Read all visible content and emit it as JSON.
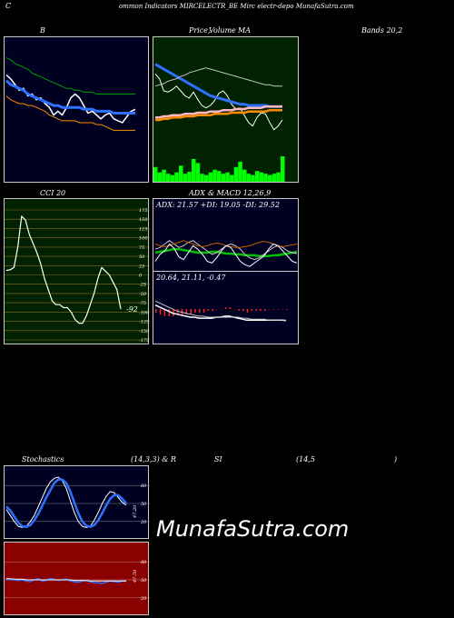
{
  "header": {
    "c": "C",
    "title": "ommon  Indicators MIRCELECTR_BE Mirc electr-depo  MunafaSutra.com"
  },
  "labels": {
    "b": "B",
    "price": "Price,",
    "volume": "Volume",
    "ma": "MA",
    "bands": "Bands 20,2",
    "cci": "CCI 20",
    "adx": "ADX",
    "macd": "& MACD 12,26,9",
    "adx_values": "ADX: 21.57  +DI: 19.05 -DI: 29.52",
    "macd_values": "20.64,  21.11,  -0.47",
    "stoch": "Stochastics",
    "stoch_params": "(14,3,3) & R",
    "si": "SI",
    "rsi_params": "(14,5",
    "close_paren": ")",
    "cci_value": "-92",
    "stoch_value": "47.20",
    "rsi_value": "47.50"
  },
  "watermark": "MunafaSutra.com",
  "colors": {
    "green_bg": "#002200",
    "navy_bg": "#000022",
    "cci_bg": "#002200",
    "rsi_bg": "#8b0000"
  },
  "chart_data": [
    {
      "type": "line",
      "name": "bollinger-bands",
      "x": [
        0,
        1,
        2,
        3,
        4,
        5,
        6,
        7,
        8,
        9,
        10,
        11,
        12,
        13,
        14,
        15,
        16,
        17,
        18,
        19,
        20,
        21,
        22,
        23,
        24,
        25,
        26,
        27,
        28,
        29,
        30
      ],
      "series": [
        {
          "name": "upper",
          "color": "#00a000",
          "values": [
            104,
            103,
            101,
            100,
            99,
            98,
            96,
            95,
            94,
            93,
            92,
            91,
            90,
            89,
            88,
            88,
            87,
            87,
            86,
            86,
            86,
            85,
            85,
            85,
            85,
            85,
            85,
            85,
            85,
            85,
            85
          ]
        },
        {
          "name": "price",
          "color": "#ffffff",
          "values": [
            95,
            93,
            90,
            87,
            88,
            84,
            85,
            82,
            83,
            80,
            78,
            74,
            76,
            74,
            78,
            83,
            85,
            83,
            79,
            75,
            76,
            74,
            72,
            74,
            75,
            72,
            71,
            70,
            73,
            76,
            77
          ]
        },
        {
          "name": "middle",
          "color": "#3070ff",
          "values": [
            92,
            90,
            89,
            88,
            87,
            85,
            84,
            83,
            82,
            81,
            80,
            79,
            79,
            78,
            78,
            78,
            78,
            78,
            77,
            77,
            77,
            76,
            76,
            76,
            76,
            75,
            75,
            75,
            75,
            75,
            75
          ]
        },
        {
          "name": "lower",
          "color": "#ff8c00",
          "values": [
            84,
            82,
            81,
            80,
            80,
            79,
            79,
            78,
            77,
            76,
            74,
            73,
            72,
            71,
            71,
            71,
            71,
            70,
            70,
            70,
            70,
            69,
            69,
            68,
            67,
            66,
            66,
            66,
            66,
            66,
            66
          ]
        }
      ]
    },
    {
      "type": "line",
      "name": "price-volume-ma",
      "x": [
        0,
        1,
        2,
        3,
        4,
        5,
        6,
        7,
        8,
        9,
        10,
        11,
        12,
        13,
        14,
        15,
        16,
        17,
        18,
        19,
        20,
        21,
        22,
        23,
        24,
        25,
        26,
        27,
        28,
        29,
        30
      ],
      "series": [
        {
          "name": "price",
          "color": "#ffffff",
          "values": [
            76,
            72,
            62,
            61,
            63,
            66,
            62,
            58,
            56,
            61,
            55,
            50,
            48,
            50,
            54,
            60,
            62,
            58,
            51,
            47,
            48,
            42,
            36,
            33,
            40,
            44,
            43,
            36,
            30,
            33,
            38
          ]
        },
        {
          "name": "ma-short",
          "color": "#3070ff",
          "values": [
            84,
            82,
            80,
            78,
            76,
            74,
            72,
            70,
            68,
            66,
            64,
            62,
            60,
            58,
            57,
            56,
            55,
            54,
            53,
            52,
            51,
            51,
            50,
            50,
            50,
            50,
            50,
            49,
            49,
            49,
            49
          ]
        },
        {
          "name": "ma-long",
          "color": "#c8c8c8",
          "values": [
            66,
            67,
            68,
            70,
            71,
            72,
            74,
            75,
            77,
            78,
            79,
            80,
            81,
            80,
            79,
            78,
            77,
            76,
            75,
            74,
            73,
            72,
            71,
            70,
            69,
            68,
            67,
            67,
            66,
            66,
            66
          ]
        },
        {
          "name": "ma-pink",
          "color": "#ffb6c1",
          "values": [
            40,
            40,
            41,
            41,
            42,
            42,
            42,
            43,
            43,
            43,
            44,
            44,
            44,
            45,
            45,
            45,
            46,
            46,
            46,
            47,
            47,
            47,
            48,
            48,
            48,
            48,
            49,
            49,
            49,
            49,
            49
          ]
        },
        {
          "name": "ma-orange",
          "color": "#ff8c00",
          "values": [
            38,
            38,
            39,
            39,
            40,
            40,
            40,
            41,
            41,
            41,
            42,
            42,
            42,
            42,
            43,
            43,
            43,
            43,
            44,
            44,
            44,
            44,
            45,
            45,
            45,
            45,
            45,
            46,
            46,
            46,
            46
          ]
        }
      ],
      "volume": [
        22,
        14,
        18,
        12,
        10,
        14,
        24,
        12,
        15,
        34,
        28,
        12,
        10,
        14,
        18,
        16,
        12,
        14,
        10,
        22,
        30,
        18,
        12,
        10,
        16,
        14,
        12,
        10,
        12,
        14,
        38
      ]
    },
    {
      "type": "line",
      "name": "cci",
      "x": [
        0,
        1,
        2,
        3,
        4,
        5,
        6,
        7,
        8,
        9,
        10,
        11,
        12,
        13,
        14,
        15,
        16,
        17,
        18,
        19,
        20,
        21,
        22,
        23,
        24,
        25,
        26,
        27,
        28,
        29,
        30
      ],
      "ylim": [
        -175,
        175
      ],
      "yticks": [
        175,
        150,
        125,
        100,
        75,
        50,
        25,
        0,
        -25,
        -50,
        -75,
        -100,
        -125,
        -150,
        -175
      ],
      "series": [
        {
          "name": "cci",
          "color": "#ffffff",
          "values": [
            12,
            14,
            20,
            75,
            158,
            148,
            110,
            85,
            60,
            30,
            -10,
            -40,
            -70,
            -80,
            -80,
            -88,
            -88,
            -100,
            -120,
            -130,
            -130,
            -110,
            -80,
            -50,
            -10,
            20,
            10,
            0,
            -20,
            -40,
            -92
          ]
        }
      ]
    },
    {
      "type": "line",
      "name": "adx",
      "x": [
        0,
        1,
        2,
        3,
        4,
        5,
        6,
        7,
        8,
        9,
        10,
        11,
        12,
        13,
        14,
        15,
        16,
        17,
        18,
        19,
        20,
        21,
        22,
        23,
        24,
        25,
        26,
        27,
        28,
        29,
        30
      ],
      "series": [
        {
          "name": "adx",
          "color": "#00c000",
          "values": [
            20,
            21,
            22,
            23,
            24,
            24,
            23,
            22,
            21,
            20,
            20,
            20,
            21,
            21,
            20,
            19,
            19,
            18,
            18,
            17,
            17,
            17,
            16,
            16,
            16,
            17,
            17,
            18,
            19,
            20,
            21
          ]
        },
        {
          "name": "plus-di",
          "color": "#c8c8c8",
          "values": [
            24,
            26,
            30,
            34,
            30,
            26,
            28,
            32,
            34,
            30,
            26,
            22,
            18,
            20,
            24,
            28,
            30,
            28,
            24,
            18,
            14,
            12,
            14,
            18,
            22,
            26,
            28,
            26,
            22,
            20,
            19
          ]
        },
        {
          "name": "minus-di",
          "color": "#c06000",
          "values": [
            30,
            28,
            27,
            28,
            30,
            32,
            34,
            32,
            30,
            28,
            27,
            28,
            30,
            31,
            30,
            28,
            27,
            26,
            26,
            27,
            28,
            30,
            32,
            33,
            32,
            30,
            28,
            27,
            28,
            29,
            30
          ]
        },
        {
          "name": "dx",
          "color": "#ffffff",
          "values": [
            10,
            18,
            22,
            30,
            25,
            15,
            12,
            20,
            28,
            24,
            18,
            10,
            8,
            14,
            22,
            28,
            26,
            18,
            10,
            6,
            4,
            8,
            12,
            16,
            24,
            30,
            28,
            22,
            16,
            10,
            8
          ]
        }
      ]
    },
    {
      "type": "line",
      "name": "macd",
      "x": [
        0,
        1,
        2,
        3,
        4,
        5,
        6,
        7,
        8,
        9,
        10,
        11,
        12,
        13,
        14,
        15,
        16,
        17,
        18,
        19,
        20,
        21,
        22,
        23,
        24,
        25,
        26,
        27,
        28,
        29,
        30
      ],
      "series": [
        {
          "name": "macd",
          "color": "#ffffff",
          "values": [
            36,
            34,
            32,
            30,
            28,
            27,
            26,
            25,
            24,
            24,
            23,
            23,
            23,
            23,
            24,
            24,
            25,
            25,
            24,
            23,
            22,
            21,
            21,
            21,
            21,
            21,
            21,
            21,
            21,
            21,
            20.64
          ]
        },
        {
          "name": "signal",
          "color": "#c8c8c8",
          "values": [
            40,
            38,
            36,
            34,
            32,
            30,
            29,
            28,
            27,
            26,
            25,
            25,
            24,
            24,
            24,
            24,
            24,
            24,
            24,
            24,
            23,
            23,
            22,
            22,
            22,
            22,
            21,
            21,
            21,
            21,
            21.11
          ]
        }
      ],
      "histogram": [
        -2,
        -3,
        -4,
        -4,
        -4,
        -3,
        -3,
        -3,
        -3,
        -2,
        -2,
        -2,
        -1,
        -1,
        0,
        0,
        1,
        1,
        0,
        -1,
        -1,
        -2,
        -1,
        -1,
        -1,
        -1,
        0,
        0,
        0,
        0,
        -0.47
      ]
    },
    {
      "type": "line",
      "name": "stochastics",
      "x": [
        0,
        1,
        2,
        3,
        4,
        5,
        6,
        7,
        8,
        9,
        10,
        11,
        12,
        13,
        14,
        15,
        16,
        17,
        18,
        19,
        20,
        21,
        22,
        23,
        24,
        25,
        26,
        27,
        28,
        29,
        30
      ],
      "ylim": [
        0,
        100
      ],
      "yticks": [
        80,
        50,
        20
      ],
      "series": [
        {
          "name": "k",
          "color": "#ffffff",
          "values": [
            40,
            30,
            20,
            12,
            10,
            12,
            20,
            30,
            45,
            60,
            75,
            86,
            92,
            94,
            88,
            75,
            55,
            35,
            20,
            12,
            10,
            12,
            22,
            35,
            50,
            62,
            70,
            68,
            60,
            52,
            47.2
          ]
        },
        {
          "name": "d",
          "color": "#3070ff",
          "values": [
            45,
            38,
            28,
            18,
            12,
            11,
            14,
            22,
            33,
            46,
            60,
            72,
            84,
            90,
            90,
            84,
            70,
            52,
            34,
            20,
            13,
            11,
            14,
            22,
            34,
            47,
            58,
            64,
            64,
            58,
            50
          ]
        }
      ]
    },
    {
      "type": "line",
      "name": "rsi",
      "x": [
        0,
        1,
        2,
        3,
        4,
        5,
        6,
        7,
        8,
        9,
        10,
        11,
        12,
        13,
        14,
        15,
        16,
        17,
        18,
        19,
        20,
        21,
        22,
        23,
        24,
        25,
        26,
        27,
        28,
        29,
        30
      ],
      "ylim": [
        0,
        100
      ],
      "yticks": [
        80,
        50,
        20
      ],
      "series": [
        {
          "name": "rsi",
          "color": "#3070ff",
          "values": [
            51,
            50,
            50,
            49,
            50,
            48,
            47,
            50,
            52,
            48,
            49,
            52,
            51,
            49,
            50,
            51,
            48,
            47,
            46,
            48,
            49,
            47,
            45,
            45,
            44,
            46,
            48,
            47,
            46,
            48,
            47.5
          ]
        },
        {
          "name": "avg",
          "color": "#ffffff",
          "values": [
            52,
            52,
            51,
            51,
            51,
            50,
            50,
            50,
            50,
            50,
            50,
            50,
            50,
            50,
            50,
            50,
            50,
            49,
            49,
            49,
            49,
            48,
            48,
            48,
            48,
            48,
            48,
            48,
            48,
            48,
            48
          ]
        }
      ]
    }
  ]
}
